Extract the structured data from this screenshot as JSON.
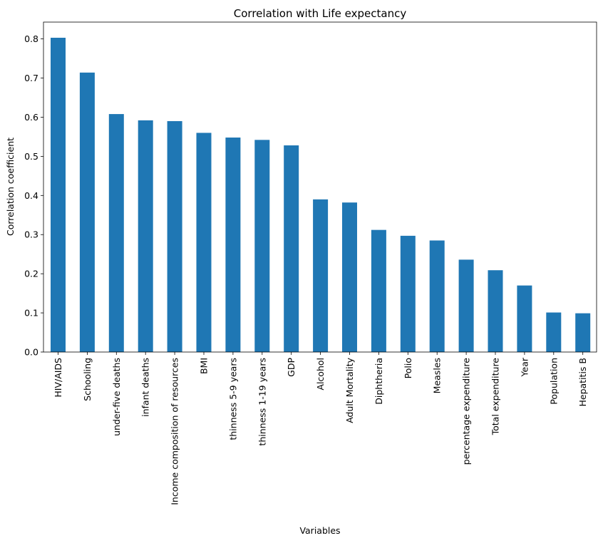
{
  "chart_data": {
    "type": "bar",
    "title": "Correlation with Life expectancy",
    "xlabel": "Variables",
    "ylabel": "Correlation coefficient",
    "categories": [
      "HIV/AIDS",
      "Schooling",
      "under-five deaths",
      "infant deaths",
      "Income composition of resources",
      "BMI",
      "thinness 5-9 years",
      "thinness  1-19 years",
      "GDP",
      "Alcohol",
      "Adult Mortality",
      "Diphtheria",
      "Polio",
      "Measles",
      "percentage expenditure",
      "Total expenditure",
      "Year",
      "Population",
      "Hepatitis B"
    ],
    "values": [
      0.803,
      0.714,
      0.608,
      0.592,
      0.59,
      0.56,
      0.548,
      0.542,
      0.528,
      0.39,
      0.382,
      0.312,
      0.297,
      0.285,
      0.236,
      0.209,
      0.17,
      0.101,
      0.099
    ],
    "ylim": [
      0,
      0.843
    ],
    "yticks": [
      "0.0",
      "0.1",
      "0.2",
      "0.3",
      "0.4",
      "0.5",
      "0.6",
      "0.7",
      "0.8"
    ],
    "grid": false,
    "bar_color": "#1f77b4"
  }
}
